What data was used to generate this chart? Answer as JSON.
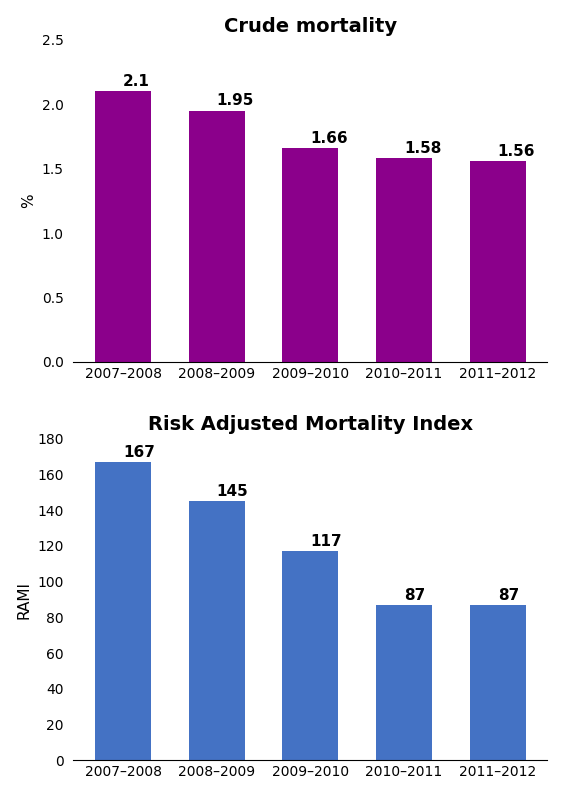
{
  "categories": [
    "2007–2008",
    "2008–2009",
    "2009–2010",
    "2010–2011",
    "2011–2012"
  ],
  "top_chart": {
    "title": "Crude mortality",
    "values": [
      2.1,
      1.95,
      1.66,
      1.58,
      1.56
    ],
    "labels": [
      "2.1",
      "1.95",
      "1.66",
      "1.58",
      "1.56"
    ],
    "bar_color": "#8B008B",
    "ylabel": "%",
    "ylim": [
      0,
      2.5
    ],
    "yticks": [
      0,
      0.5,
      1.0,
      1.5,
      2.0,
      2.5
    ]
  },
  "bottom_chart": {
    "title": "Risk Adjusted Mortality Index",
    "values": [
      167,
      145,
      117,
      87,
      87
    ],
    "labels": [
      "167",
      "145",
      "117",
      "87",
      "87"
    ],
    "bar_color": "#4472C4",
    "ylabel": "RAMI",
    "ylim": [
      0,
      180
    ],
    "yticks": [
      0,
      20,
      40,
      60,
      80,
      100,
      120,
      140,
      160,
      180
    ]
  },
  "background_color": "#ffffff",
  "title_fontsize": 14,
  "label_fontsize": 11,
  "tick_fontsize": 10,
  "annotation_fontsize": 11,
  "bar_width": 0.6
}
